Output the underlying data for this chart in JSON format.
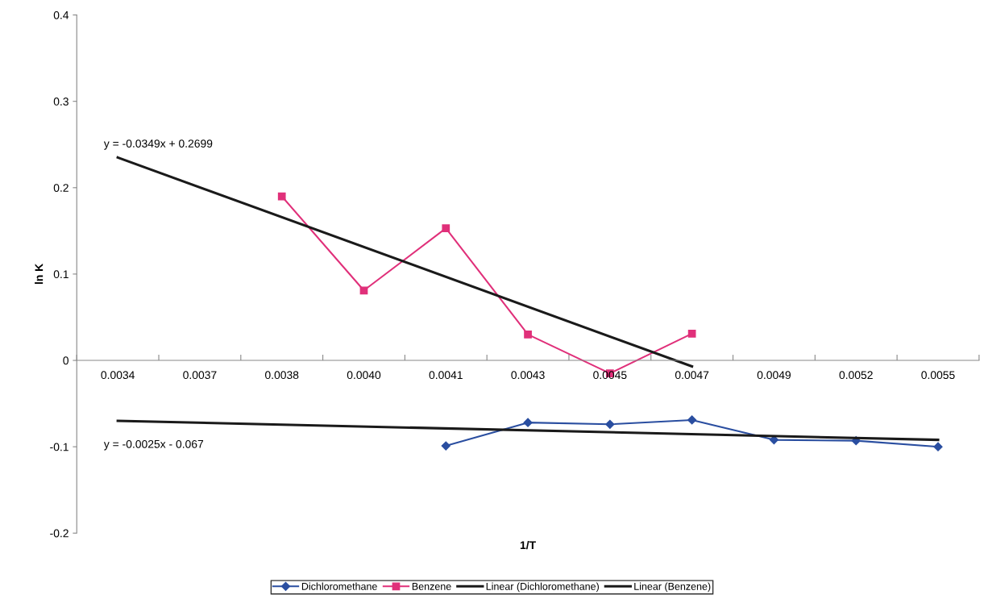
{
  "chart_data": {
    "type": "line",
    "xlabel": "1/T",
    "ylabel": "ln K",
    "categories": [
      "0.0034",
      "0.0037",
      "0.0038",
      "0.0040",
      "0.0041",
      "0.0043",
      "0.0045",
      "0.0047",
      "0.0049",
      "0.0052",
      "0.0055"
    ],
    "series": [
      {
        "name": "Dichloromethane",
        "color": "#2a4ea0",
        "marker": "diamond",
        "values": [
          null,
          null,
          null,
          null,
          -0.099,
          -0.072,
          -0.074,
          -0.069,
          -0.092,
          -0.093,
          -0.1
        ]
      },
      {
        "name": "Benzene",
        "color": "#e0307a",
        "marker": "square",
        "values": [
          null,
          null,
          0.19,
          0.081,
          0.153,
          0.03,
          -0.015,
          0.031,
          null,
          null,
          null
        ]
      },
      {
        "name": "Linear (Dichloromethane)",
        "color": "#1a1a1a",
        "marker": "none",
        "values": [
          -0.07,
          null,
          null,
          null,
          null,
          null,
          null,
          null,
          null,
          null,
          -0.092
        ]
      },
      {
        "name": "Linear (Benzene)",
        "color": "#1a1a1a",
        "marker": "none",
        "values": [
          0.235,
          null,
          null,
          null,
          null,
          null,
          null,
          -0.007,
          null,
          null,
          null
        ]
      }
    ],
    "ylim": [
      -0.2,
      0.4
    ],
    "yticks": [
      -0.2,
      -0.1,
      0,
      0.1,
      0.2,
      0.3,
      0.4
    ],
    "legend": "bottom",
    "annotations": [
      "y = -0.0349x + 0.2699",
      "y = -0.0025x - 0.067"
    ]
  }
}
